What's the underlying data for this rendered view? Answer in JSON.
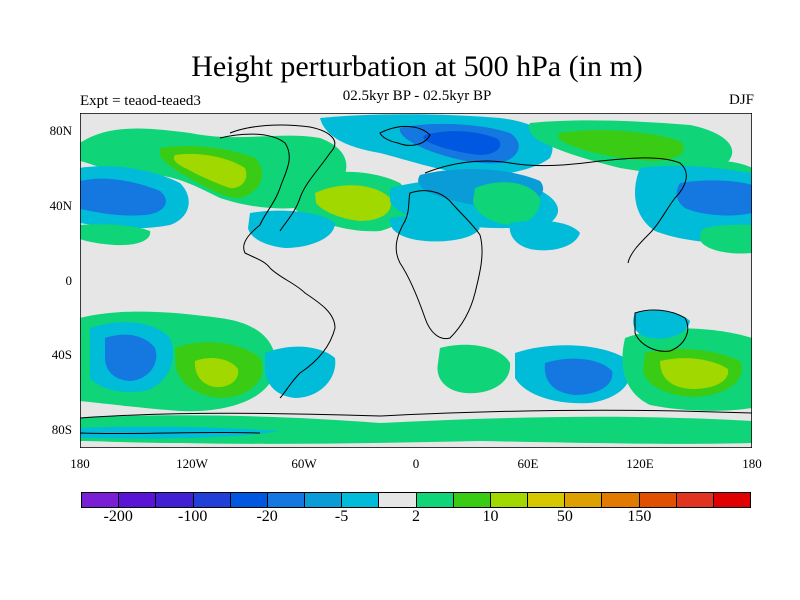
{
  "title": "Height perturbation at 500 hPa (in m)",
  "subtitle": "02.5kyr BP - 02.5kyr BP",
  "left_note": "Expt = teaod-teaed3",
  "right_note": "DJF",
  "lat_labels": [
    "80N",
    "40N",
    "0",
    "40S",
    "80S"
  ],
  "lon_labels": [
    "180",
    "120W",
    "60W",
    "0",
    "60E",
    "120E",
    "180"
  ],
  "colorbar": {
    "colors": [
      "#7a1fd6",
      "#5a14d6",
      "#4020d2",
      "#2040d8",
      "#0058e0",
      "#1478e0",
      "#0a9cd6",
      "#00bcd8",
      "#e6e6e6",
      "#10d478",
      "#3acc14",
      "#a0d800",
      "#d6c800",
      "#dca000",
      "#e07a00",
      "#e05000",
      "#e03420",
      "#e00000"
    ],
    "labels": [
      "-200",
      "-100",
      "-20",
      "-5",
      "2",
      "10",
      "50",
      "150"
    ]
  },
  "colors": {
    "neutral": "#e6e6e6",
    "light_blue": "#00bcd8",
    "mid_blue": "#0a9cd6",
    "blue": "#1478e0",
    "deep_blue": "#0058e0",
    "light_green": "#10d478",
    "green": "#3acc14",
    "yellow_green": "#a0d800"
  }
}
